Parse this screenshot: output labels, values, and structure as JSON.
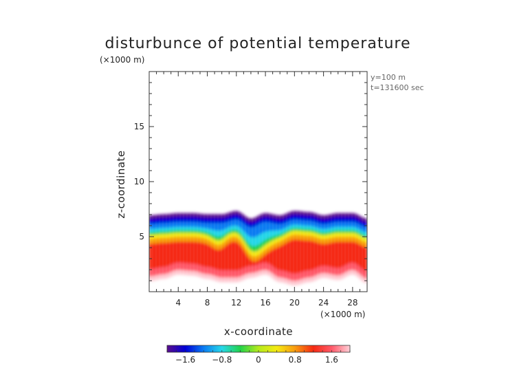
{
  "chart_data": {
    "type": "heatmap",
    "title": "disturbunce of potential temperature",
    "xlabel": "x-coordinate",
    "ylabel": "z-coordinate",
    "x_unit": "(×1000 m)",
    "y_unit": "(×1000 m)",
    "info_lines": [
      "y=100 m",
      "t=131600 sec"
    ],
    "xlim": [
      0,
      30
    ],
    "ylim": [
      0,
      20
    ],
    "x_ticks": [
      4,
      8,
      12,
      16,
      20,
      24,
      28
    ],
    "y_ticks": [
      5,
      10,
      15
    ],
    "colorbar": {
      "range": [
        -2.0,
        2.0
      ],
      "tick_values": [
        -1.6,
        -0.8,
        0,
        0.8,
        1.6
      ],
      "tick_labels": [
        "−1.6",
        "−0.8",
        "0",
        "0.8",
        "1.6"
      ],
      "colors": [
        "#5a0e8c",
        "#0000d6",
        "#0a7cf2",
        "#27d7e8",
        "#22d24a",
        "#b4ea1c",
        "#f5ea12",
        "#f89b10",
        "#f52a12",
        "#ff5a6a",
        "#ffd0d8"
      ]
    },
    "field_description_grid": {
      "x": [
        0,
        2,
        4,
        6,
        8,
        10,
        12,
        14,
        16,
        18,
        20,
        22,
        24,
        26,
        28,
        30
      ],
      "layer_tops": [
        6.9,
        7.0,
        7.1,
        7.1,
        7.0,
        7.0,
        7.3,
        6.6,
        7.1,
        6.9,
        7.3,
        7.2,
        6.9,
        7.1,
        7.1,
        6.6
      ],
      "layer_bottoms": [
        1.0,
        1.2,
        1.6,
        1.5,
        1.2,
        0.9,
        0.9,
        1.3,
        1.6,
        0.9,
        0.6,
        0.9,
        1.3,
        1.1,
        1.6,
        0.8
      ]
    }
  }
}
